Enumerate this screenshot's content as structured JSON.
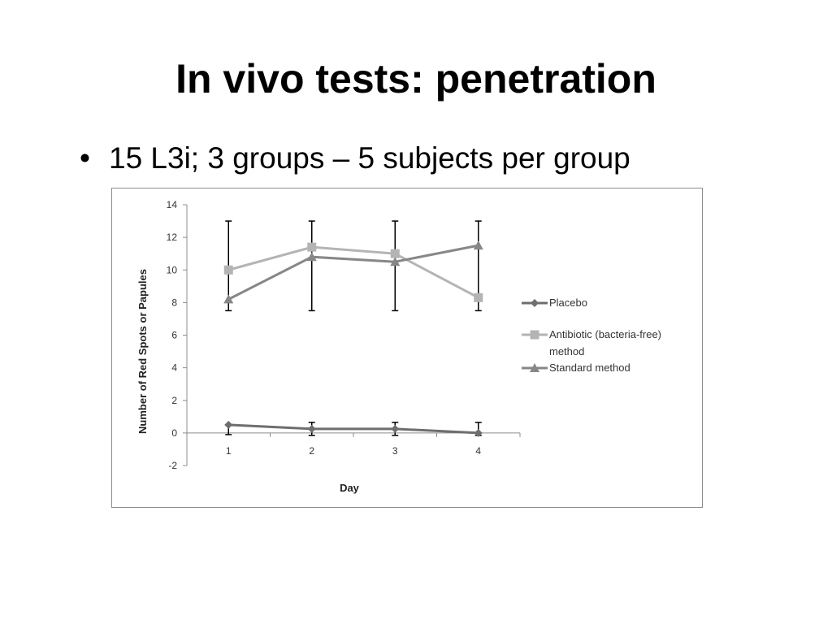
{
  "slide": {
    "title": "In vivo tests: penetration",
    "bullet": "15 L3i; 3 groups – 5 subjects per group"
  },
  "chart_data": {
    "type": "line",
    "xlabel": "Day",
    "ylabel": "Number of Red Spots or Papules",
    "ylim": [
      -2,
      14
    ],
    "yticks": [
      -2,
      0,
      2,
      4,
      6,
      8,
      10,
      12,
      14
    ],
    "categories": [
      "1",
      "2",
      "3",
      "4"
    ],
    "grid": false,
    "legend_position": "right",
    "error_bar_color": "#000000",
    "series": [
      {
        "name": "Placebo",
        "values": [
          0.5,
          0.25,
          0.25,
          0.0
        ],
        "marker": "diamond",
        "color": "#6e6e6e",
        "error_low": [
          -0.1,
          -0.15,
          -0.15,
          -0.15
        ],
        "error_high": [
          0.5,
          0.65,
          0.65,
          0.65
        ]
      },
      {
        "name": "Antibiotic (bacteria-free) method",
        "values": [
          10.0,
          11.4,
          11.0,
          8.3
        ],
        "marker": "square",
        "color": "#b4b4b4"
      },
      {
        "name": "Standard method",
        "values": [
          8.2,
          10.8,
          10.5,
          11.5
        ],
        "marker": "triangle",
        "color": "#878787",
        "error_low": [
          7.5,
          7.5,
          7.5,
          7.5
        ],
        "error_high": [
          13.0,
          13.0,
          13.0,
          13.0
        ]
      }
    ]
  }
}
